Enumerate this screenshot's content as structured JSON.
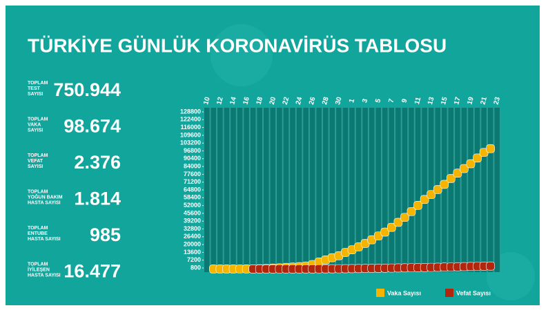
{
  "header": {
    "title": "TÜRKİYE GÜNLÜK KORONAVİRÜS TABLOSU"
  },
  "stats": [
    {
      "label": [
        "TOPLAM",
        "TEST",
        "SAYISI"
      ],
      "value": "750.944"
    },
    {
      "label": [
        "TOPLAM",
        "VAKA",
        "SAYISI"
      ],
      "value": "98.674"
    },
    {
      "label": [
        "TOPLAM",
        "VEFAT",
        "SAYISI"
      ],
      "value": "2.376"
    },
    {
      "label": [
        "TOPLAM",
        "YOĞUN BAKIM",
        "HASTA SAYISI"
      ],
      "value": "1.814"
    },
    {
      "label": [
        "TOPLAM",
        "ENTUBE",
        "HASTA SAYISI"
      ],
      "value": "985"
    },
    {
      "label": [
        "TOPLAM",
        "İYİLEŞEN",
        "HASTA SAYISI"
      ],
      "value": "16.477"
    }
  ],
  "chart_data": {
    "type": "line",
    "categories": [
      "10",
      null,
      "12",
      null,
      "14",
      null,
      "16",
      null,
      "18",
      null,
      "20",
      null,
      "22",
      null,
      "24",
      null,
      "26",
      null,
      "28",
      null,
      "30",
      null,
      "1",
      null,
      "3",
      null,
      "5",
      null,
      "7",
      null,
      "9",
      null,
      "11",
      null,
      "13",
      null,
      "15",
      null,
      "17",
      null,
      "19",
      null,
      "21",
      null,
      "23"
    ],
    "series": [
      {
        "name": "Vaka Sayısı",
        "color": "#f4b400",
        "values": [
          null,
          1,
          1,
          5,
          6,
          18,
          47,
          98,
          191,
          359,
          670,
          947,
          1236,
          1529,
          1872,
          2433,
          3629,
          5698,
          7402,
          9217,
          10827,
          13531,
          15679,
          18135,
          20921,
          23934,
          27069,
          30217,
          34109,
          38226,
          42282,
          47029,
          52167,
          56956,
          61049,
          65111,
          69392,
          74193,
          78546,
          82329,
          86306,
          90980,
          95591,
          98674,
          null
        ]
      },
      {
        "name": "Vefat Sayısı",
        "color": "#b3260e",
        "values": [
          null,
          null,
          null,
          null,
          null,
          null,
          null,
          1,
          2,
          4,
          9,
          21,
          30,
          37,
          44,
          59,
          75,
          92,
          108,
          131,
          168,
          214,
          277,
          356,
          425,
          501,
          574,
          649,
          725,
          812,
          908,
          1006,
          1101,
          1198,
          1296,
          1403,
          1518,
          1643,
          1769,
          1890,
          2017,
          2140,
          2259,
          2376,
          null
        ]
      }
    ],
    "ylim": [
      800,
      128800
    ],
    "yticks": [
      800,
      7200,
      13600,
      20000,
      26400,
      32800,
      39200,
      45600,
      52000,
      58400,
      64800,
      71200,
      77600,
      84000,
      90400,
      96800,
      103200,
      109600,
      116000,
      122400,
      128800
    ],
    "legend": "bottom-right"
  }
}
